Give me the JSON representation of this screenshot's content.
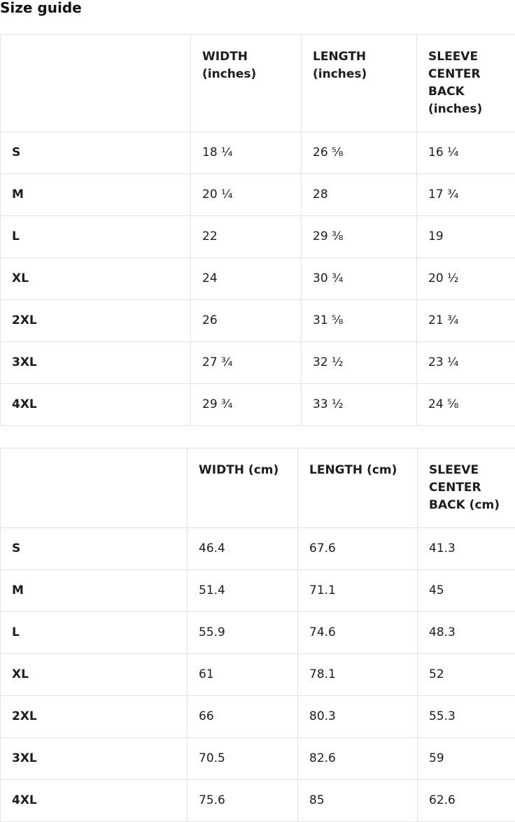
{
  "page": {
    "title": "Size guide"
  },
  "colors": {
    "text": "#1d1d1d",
    "border": "#e2e2e2",
    "background": "#ffffff"
  },
  "tables": [
    {
      "unit": "inches",
      "columns": [
        "",
        "WIDTH (inches)",
        "LENGTH (inches)",
        "SLEEVE CENTER BACK (inches)"
      ],
      "rows": [
        {
          "size": "S",
          "values": [
            "18 ¼",
            "26 ⅝",
            "16 ¼"
          ]
        },
        {
          "size": "M",
          "values": [
            "20 ¼",
            "28",
            "17 ¾"
          ]
        },
        {
          "size": "L",
          "values": [
            "22",
            "29 ⅜",
            "19"
          ]
        },
        {
          "size": "XL",
          "values": [
            "24",
            "30 ¾",
            "20 ½"
          ]
        },
        {
          "size": "2XL",
          "values": [
            "26",
            "31 ⅝",
            "21 ¾"
          ]
        },
        {
          "size": "3XL",
          "values": [
            "27 ¾",
            "32 ½",
            "23 ¼"
          ]
        },
        {
          "size": "4XL",
          "values": [
            "29 ¾",
            "33 ½",
            "24 ⅝"
          ]
        }
      ]
    },
    {
      "unit": "cm",
      "columns": [
        "",
        "WIDTH (cm)",
        "LENGTH (cm)",
        "SLEEVE CENTER BACK (cm)"
      ],
      "rows": [
        {
          "size": "S",
          "values": [
            "46.4",
            "67.6",
            "41.3"
          ]
        },
        {
          "size": "M",
          "values": [
            "51.4",
            "71.1",
            "45"
          ]
        },
        {
          "size": "L",
          "values": [
            "55.9",
            "74.6",
            "48.3"
          ]
        },
        {
          "size": "XL",
          "values": [
            "61",
            "78.1",
            "52"
          ]
        },
        {
          "size": "2XL",
          "values": [
            "66",
            "80.3",
            "55.3"
          ]
        },
        {
          "size": "3XL",
          "values": [
            "70.5",
            "82.6",
            "59"
          ]
        },
        {
          "size": "4XL",
          "values": [
            "75.6",
            "85",
            "62.6"
          ]
        }
      ]
    }
  ]
}
